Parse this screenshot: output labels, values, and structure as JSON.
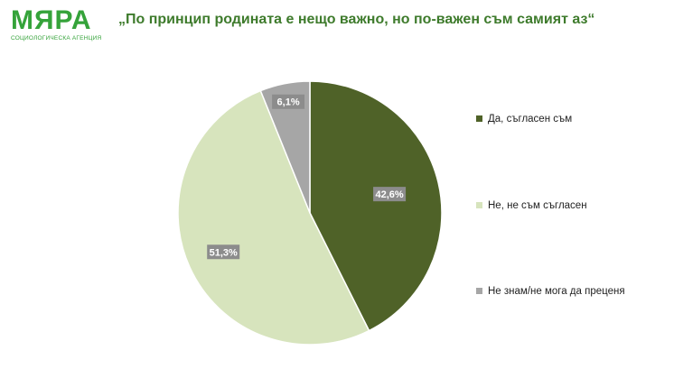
{
  "logo": {
    "name": "МЯРА",
    "tagline": "СОЦИОЛОГИЧЕСКА АГЕНЦИЯ"
  },
  "colors": {
    "brand": "#35a33a",
    "title": "#3e7b2c"
  },
  "chart_data": {
    "type": "pie",
    "title": "„По принцип родината е нещо важно, но по-важен съм самият аз“",
    "slices": [
      {
        "label": "Да, съгласен съм",
        "value": 42.6,
        "display": "42,6%",
        "color": "#4f6228"
      },
      {
        "label": "Не, не съм съгласен",
        "value": 51.3,
        "display": "51,3%",
        "color": "#d7e4bd"
      },
      {
        "label": "Не знам/не мога да преценя",
        "value": 6.1,
        "display": "6,1%",
        "color": "#a6a6a6"
      }
    ],
    "legend_position": "right"
  }
}
